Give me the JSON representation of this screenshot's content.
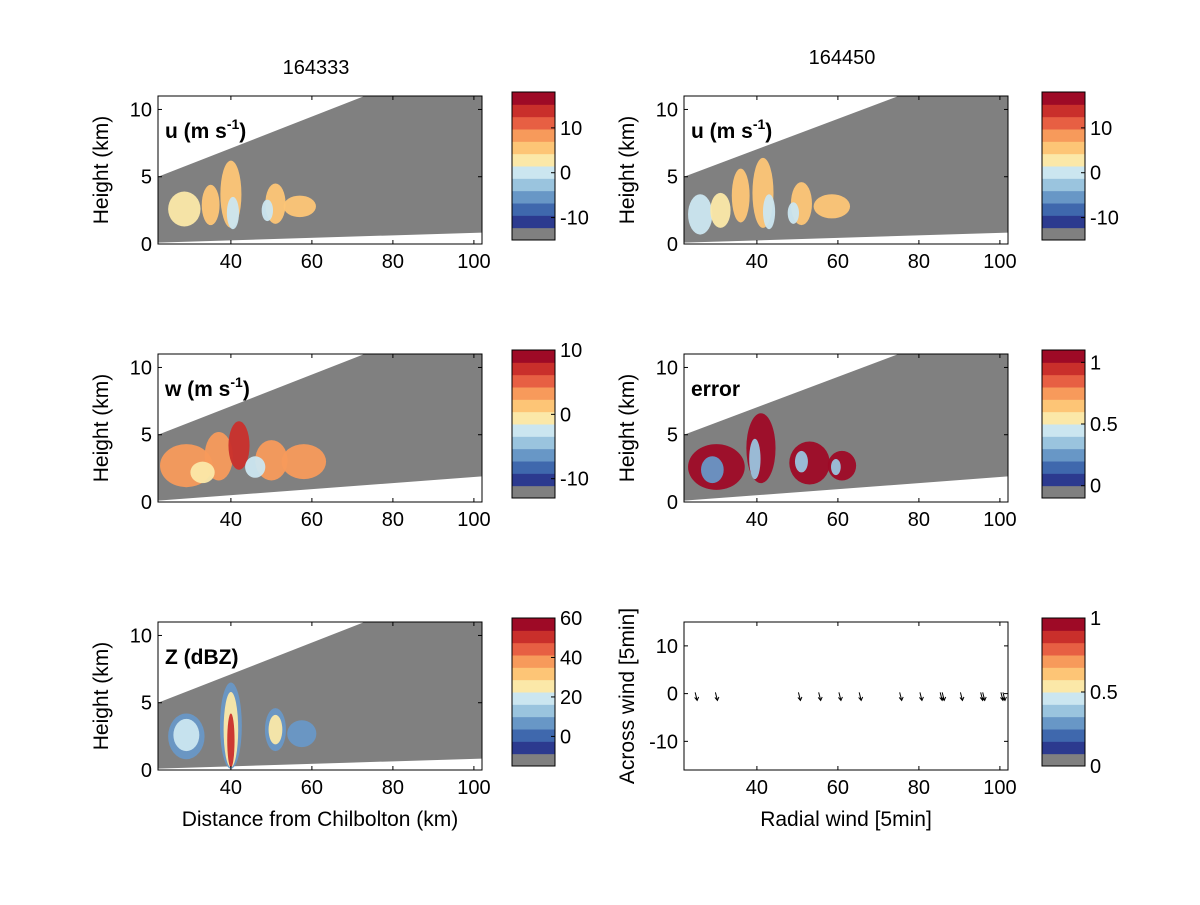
{
  "figure": {
    "columns": [
      {
        "title": "164333"
      },
      {
        "title": "164450"
      }
    ],
    "colormap": [
      "#808080",
      "#2c3a8f",
      "#3f68ad",
      "#6897c6",
      "#9ac4de",
      "#cbe6f0",
      "#fbe8a8",
      "#fdc576",
      "#f79a5b",
      "#e75f43",
      "#c92f2b",
      "#9e0a26"
    ],
    "domain_color": "#808080",
    "arrow_color": "#000000"
  },
  "chart_data": [
    {
      "id": "u-164333",
      "type": "heatmap",
      "annotation": "u (m s-1)",
      "annotation_parts": {
        "base": "u (m s",
        "sup": "-1",
        "tail": ")"
      },
      "xlabel": "",
      "ylabel": "Height (km)",
      "xlim": [
        22,
        102
      ],
      "ylim": [
        0,
        11
      ],
      "xticks": [
        40,
        60,
        80,
        100
      ],
      "yticks": [
        0,
        5,
        10
      ],
      "scan_top": {
        "x0": 22,
        "y0": 5.0,
        "x1": 73,
        "y1": 11
      },
      "scan_bottom": {
        "x0": 22,
        "y0": 0.1,
        "x1": 102,
        "y1": 0.85
      },
      "clim": [
        -15,
        18
      ],
      "colorbar_ticks": [
        10,
        0,
        -10
      ],
      "blobs": [
        {
          "x": 28.5,
          "y": 2.6,
          "rx": 4.0,
          "ry": 1.3,
          "v": 1
        },
        {
          "x": 35.0,
          "y": 2.9,
          "rx": 2.2,
          "ry": 1.5,
          "v": 3
        },
        {
          "x": 40.0,
          "y": 3.7,
          "rx": 2.6,
          "ry": 2.5,
          "v": 4
        },
        {
          "x": 40.5,
          "y": 2.3,
          "rx": 1.5,
          "ry": 1.2,
          "v": -1
        },
        {
          "x": 51.0,
          "y": 3.0,
          "rx": 2.5,
          "ry": 1.5,
          "v": 3
        },
        {
          "x": 57.0,
          "y": 2.8,
          "rx": 4.0,
          "ry": 0.8,
          "v": 4
        },
        {
          "x": 49.0,
          "y": 2.5,
          "rx": 1.4,
          "ry": 0.8,
          "v": -2
        }
      ]
    },
    {
      "id": "u-164450",
      "type": "heatmap",
      "annotation": "u (m s-1)",
      "annotation_parts": {
        "base": "u (m s",
        "sup": "-1",
        "tail": ")"
      },
      "xlabel": "",
      "ylabel": "Height (km)",
      "xlim": [
        22,
        102
      ],
      "ylim": [
        0,
        11
      ],
      "xticks": [
        40,
        60,
        80,
        100
      ],
      "yticks": [
        0,
        5,
        10
      ],
      "scan_top": {
        "x0": 22,
        "y0": 5.0,
        "x1": 75,
        "y1": 11
      },
      "scan_bottom": {
        "x0": 22,
        "y0": 0.1,
        "x1": 102,
        "y1": 0.85
      },
      "clim": [
        -15,
        18
      ],
      "colorbar_ticks": [
        10,
        0,
        -10
      ],
      "blobs": [
        {
          "x": 26.0,
          "y": 2.2,
          "rx": 3.0,
          "ry": 1.5,
          "v": -1
        },
        {
          "x": 31.0,
          "y": 2.5,
          "rx": 2.5,
          "ry": 1.3,
          "v": 1
        },
        {
          "x": 36.0,
          "y": 3.6,
          "rx": 2.2,
          "ry": 2.0,
          "v": 3
        },
        {
          "x": 41.5,
          "y": 3.8,
          "rx": 2.6,
          "ry": 2.6,
          "v": 4
        },
        {
          "x": 43.0,
          "y": 2.4,
          "rx": 1.5,
          "ry": 1.3,
          "v": -1
        },
        {
          "x": 51.0,
          "y": 3.0,
          "rx": 2.6,
          "ry": 1.6,
          "v": 3
        },
        {
          "x": 58.5,
          "y": 2.8,
          "rx": 4.5,
          "ry": 0.9,
          "v": 3
        },
        {
          "x": 49.0,
          "y": 2.3,
          "rx": 1.4,
          "ry": 0.8,
          "v": -2
        }
      ]
    },
    {
      "id": "w-164333",
      "type": "heatmap",
      "annotation": "w (m s-1)",
      "annotation_parts": {
        "base": "w (m s",
        "sup": "-1",
        "tail": ")"
      },
      "xlabel": "",
      "ylabel": "Height (km)",
      "xlim": [
        22,
        102
      ],
      "ylim": [
        0,
        11
      ],
      "xticks": [
        40,
        60,
        80,
        100
      ],
      "yticks": [
        0,
        5,
        10
      ],
      "scan_top": {
        "x0": 22,
        "y0": 5.0,
        "x1": 73,
        "y1": 11
      },
      "scan_bottom": {
        "x0": 22,
        "y0": 0.1,
        "x1": 102,
        "y1": 1.9
      },
      "clim": [
        -13,
        10
      ],
      "colorbar_ticks": [
        10,
        0,
        -10
      ],
      "blobs": [
        {
          "x": 29.0,
          "y": 2.7,
          "rx": 6.5,
          "ry": 1.6,
          "v": 2
        },
        {
          "x": 37.0,
          "y": 3.4,
          "rx": 3.5,
          "ry": 1.8,
          "v": 3
        },
        {
          "x": 42.0,
          "y": 4.2,
          "rx": 2.6,
          "ry": 1.8,
          "v": 6
        },
        {
          "x": 50.0,
          "y": 3.1,
          "rx": 4.0,
          "ry": 1.5,
          "v": 3
        },
        {
          "x": 58.0,
          "y": 3.0,
          "rx": 5.5,
          "ry": 1.3,
          "v": 2
        },
        {
          "x": 33.0,
          "y": 2.2,
          "rx": 3.0,
          "ry": 0.8,
          "v": -1
        },
        {
          "x": 46.0,
          "y": 2.6,
          "rx": 2.5,
          "ry": 0.8,
          "v": -3
        }
      ]
    },
    {
      "id": "error-164450",
      "type": "heatmap",
      "annotation": "error",
      "annotation_parts": {
        "base": "error",
        "sup": "",
        "tail": ""
      },
      "xlabel": "",
      "ylabel": "Height (km)",
      "xlim": [
        22,
        102
      ],
      "ylim": [
        0,
        11
      ],
      "xticks": [
        40,
        60,
        80,
        100
      ],
      "yticks": [
        0,
        5,
        10
      ],
      "scan_top": {
        "x0": 22,
        "y0": 5.0,
        "x1": 75,
        "y1": 11
      },
      "scan_bottom": {
        "x0": 22,
        "y0": 0.1,
        "x1": 102,
        "y1": 1.9
      },
      "clim": [
        -0.1,
        1.1
      ],
      "colorbar_ticks": [
        1,
        0.5,
        0
      ],
      "blobs": [
        {
          "x": 30.0,
          "y": 2.6,
          "rx": 7.0,
          "ry": 1.7,
          "v": 1.05
        },
        {
          "x": 41.0,
          "y": 4.0,
          "rx": 3.6,
          "ry": 2.6,
          "v": 1.05
        },
        {
          "x": 53.0,
          "y": 2.9,
          "rx": 5.0,
          "ry": 1.6,
          "v": 1.05
        },
        {
          "x": 61.0,
          "y": 2.7,
          "rx": 3.5,
          "ry": 1.1,
          "v": 1.05
        },
        {
          "x": 29.0,
          "y": 2.4,
          "rx": 2.8,
          "ry": 1.0,
          "v": 0.2
        },
        {
          "x": 39.5,
          "y": 3.2,
          "rx": 1.4,
          "ry": 1.5,
          "v": 0.25
        },
        {
          "x": 51.0,
          "y": 3.0,
          "rx": 1.6,
          "ry": 0.8,
          "v": 0.3
        },
        {
          "x": 59.5,
          "y": 2.6,
          "rx": 1.2,
          "ry": 0.6,
          "v": 0.3
        }
      ]
    },
    {
      "id": "z-164333",
      "type": "heatmap",
      "annotation": "Z (dBZ)",
      "annotation_parts": {
        "base": "Z (dBZ)",
        "sup": "",
        "tail": ""
      },
      "xlabel": "Distance from Chilbolton (km)",
      "ylabel": "Height (km)",
      "xlim": [
        22,
        102
      ],
      "ylim": [
        0,
        11
      ],
      "xticks": [
        40,
        60,
        80,
        100
      ],
      "yticks": [
        0,
        5,
        10
      ],
      "scan_top": {
        "x0": 22,
        "y0": 5.0,
        "x1": 73,
        "y1": 11
      },
      "scan_bottom": {
        "x0": 22,
        "y0": 0.1,
        "x1": 102,
        "y1": 0.85
      },
      "clim": [
        -15,
        60
      ],
      "colorbar_ticks": [
        60,
        40,
        20,
        0
      ],
      "blobs": [
        {
          "x": 29.0,
          "y": 2.5,
          "rx": 4.5,
          "ry": 1.7,
          "v": 0
        },
        {
          "x": 29.0,
          "y": 2.6,
          "rx": 3.2,
          "ry": 1.2,
          "v": 18
        },
        {
          "x": 40.0,
          "y": 3.3,
          "rx": 2.7,
          "ry": 3.2,
          "v": 5
        },
        {
          "x": 40.0,
          "y": 3.0,
          "rx": 1.8,
          "ry": 2.8,
          "v": 25
        },
        {
          "x": 40.0,
          "y": 2.2,
          "rx": 0.9,
          "ry": 2.0,
          "v": 50
        },
        {
          "x": 51.0,
          "y": 3.0,
          "rx": 2.6,
          "ry": 1.6,
          "v": 0
        },
        {
          "x": 51.0,
          "y": 3.0,
          "rx": 1.7,
          "ry": 1.1,
          "v": 20
        },
        {
          "x": 57.5,
          "y": 2.7,
          "rx": 3.6,
          "ry": 1.0,
          "v": 5
        }
      ]
    },
    {
      "id": "radial-wind",
      "type": "scatter",
      "annotation": "",
      "xlabel": "Radial wind [5min]",
      "ylabel": "Across wind [5min]",
      "xlim": [
        22,
        102
      ],
      "ylim": [
        -16,
        15
      ],
      "xticks": [
        40,
        60,
        80,
        100
      ],
      "yticks": [
        -10,
        0,
        10
      ],
      "clim": [
        0,
        1
      ],
      "colorbar_ticks": [
        1,
        0.5,
        0
      ],
      "arrows": [
        {
          "x": 25,
          "y": -0.8
        },
        {
          "x": 30,
          "y": -0.8
        },
        {
          "x": 50.5,
          "y": -0.8
        },
        {
          "x": 55.5,
          "y": -0.8
        },
        {
          "x": 60.5,
          "y": -0.8
        },
        {
          "x": 65.5,
          "y": -0.8
        },
        {
          "x": 75.5,
          "y": -0.8
        },
        {
          "x": 80.5,
          "y": -0.8
        },
        {
          "x": 85.5,
          "y": -0.8
        },
        {
          "x": 86,
          "y": -0.8
        },
        {
          "x": 90.5,
          "y": -0.8
        },
        {
          "x": 95.5,
          "y": -0.8
        },
        {
          "x": 96,
          "y": -0.8
        },
        {
          "x": 100.5,
          "y": -0.8
        },
        {
          "x": 101,
          "y": -0.8
        }
      ]
    }
  ]
}
